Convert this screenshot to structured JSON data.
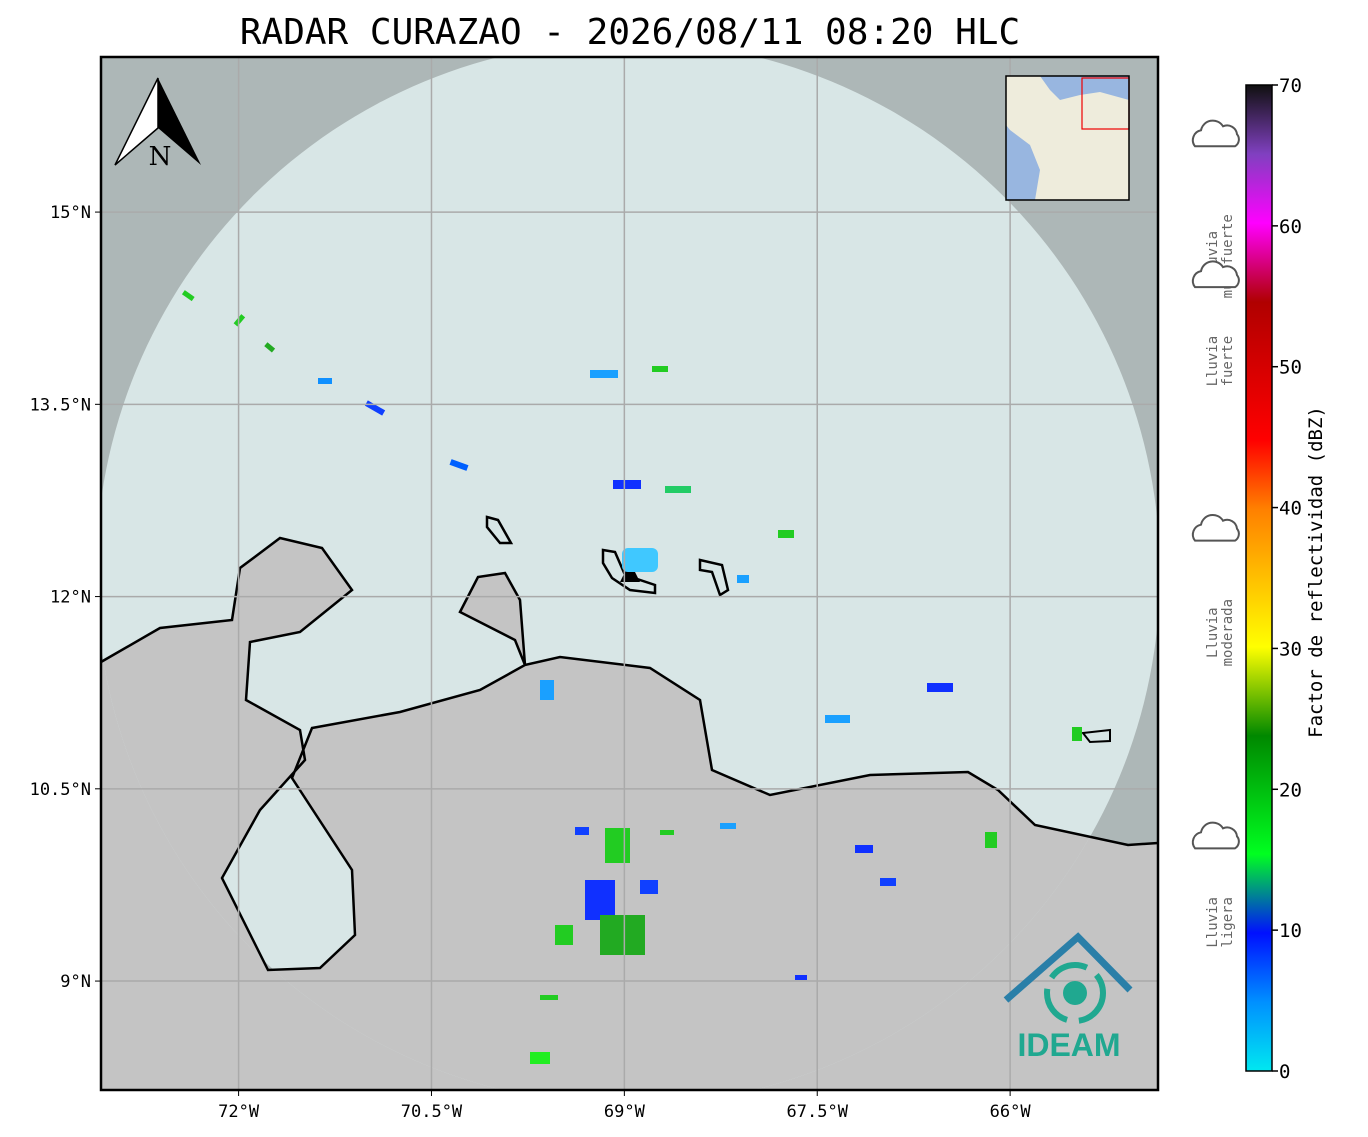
{
  "title": "RADAR CURAZAO - 2026/08/11 08:20 HLC",
  "compass": "N",
  "logo": "IDEAM",
  "map": {
    "xlim": [
      -73.07,
      -64.85
    ],
    "ylim": [
      8.15,
      16.21
    ],
    "xticks": [
      {
        "value": -72,
        "label": "72°W"
      },
      {
        "value": -70.5,
        "label": "70.5°W"
      },
      {
        "value": -69,
        "label": "69°W"
      },
      {
        "value": -67.5,
        "label": "67.5°W"
      },
      {
        "value": -66,
        "label": "66°W"
      }
    ],
    "yticks": [
      {
        "value": 15,
        "label": "15°N"
      },
      {
        "value": 13.5,
        "label": "13.5°N"
      },
      {
        "value": 12,
        "label": "12°N"
      },
      {
        "value": 10.5,
        "label": "10.5°N"
      },
      {
        "value": 9,
        "label": "9°N"
      }
    ],
    "grid": true
  },
  "colorbar": {
    "label": "Factor de reflectividad (dBZ)",
    "lim": [
      0,
      70
    ],
    "ticks": [
      0,
      10,
      20,
      30,
      40,
      50,
      60,
      70
    ]
  },
  "legend": [
    {
      "lines": [
        "Lluvia",
        "muy fuerte"
      ],
      "dbz": 55
    },
    {
      "lines": [
        "Lluvia",
        "fuerte"
      ],
      "dbz": 45
    },
    {
      "lines": [
        "Lluvia",
        "moderada"
      ],
      "dbz": 27
    },
    {
      "lines": [
        "Lluvia",
        "ligera"
      ],
      "dbz": 8
    }
  ]
}
